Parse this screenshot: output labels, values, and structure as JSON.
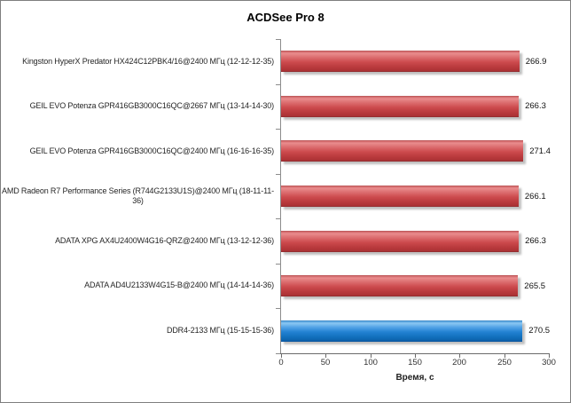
{
  "window": {
    "background": "#ffffff",
    "border_color": "#7f7f7f"
  },
  "chart_data": {
    "type": "bar",
    "orientation": "horizontal",
    "title": "ACDSee Pro 8",
    "xlabel": "Время, с",
    "xlim": [
      0,
      300
    ],
    "x_ticks": [
      0,
      50,
      100,
      150,
      200,
      250,
      300
    ],
    "grid": false,
    "legend": null,
    "categories": [
      "Kingston HyperX Predator HX424C12PBK4/16@2400 МГц (12-12-12-35)",
      "GEIL EVO Potenza GPR416GB3000C16QC@2667 МГц (13-14-14-30)",
      "GEIL EVO Potenza GPR416GB3000C16QC@2400 МГц (16-16-16-35)",
      "AMD Radeon R7 Performance Series (R744G2133U1S)@2400 МГц (18-11-11-36)",
      "ADATA XPG AX4U2400W4G16-QRZ@2400 МГц (13-12-12-36)",
      "ADATA AD4U2133W4G15-B@2400 МГц (14-14-14-36)",
      "DDR4-2133 МГц (15-15-15-36)"
    ],
    "values": [
      266.9,
      266.3,
      271.4,
      266.1,
      266.3,
      265.5,
      270.5
    ],
    "value_labels": [
      "266.9",
      "266.3",
      "271.4",
      "266.1",
      "266.3",
      "265.5",
      "270.5"
    ],
    "bar_styles": [
      "red",
      "red",
      "red",
      "red",
      "red",
      "red",
      "blue"
    ],
    "colors": {
      "red": "#c4393c",
      "blue": "#1a77cc"
    }
  }
}
